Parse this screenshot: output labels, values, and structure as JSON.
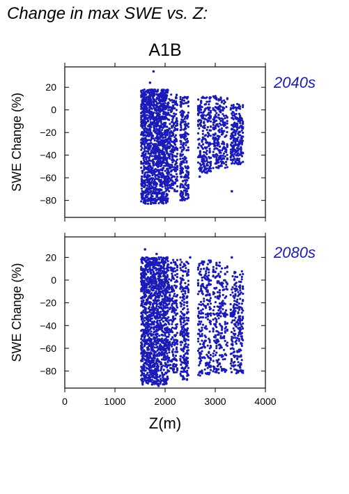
{
  "heading": "Change in max SWE vs. Z:",
  "scenario": "A1B",
  "colors": {
    "points": "#1a1ab8",
    "period_label": "#1a1ab8",
    "axes": "#000000"
  },
  "chart_data": [
    {
      "type": "scatter",
      "title": "2040s",
      "xlabel": "",
      "ylabel": "SWE Change (%)",
      "xlim": [
        0,
        4000
      ],
      "ylim": [
        -95,
        38
      ],
      "yticks": [
        "20",
        "0",
        "−20",
        "−40",
        "−60",
        "−80"
      ],
      "xtick_labels_visible": false,
      "grid": false,
      "elevation_bands": [
        {
          "z_min": 1520,
          "z_max": 2060,
          "y_min": -83,
          "y_max": 18,
          "dense": true
        },
        {
          "z_min": 2060,
          "z_max": 2250,
          "y_min": -72,
          "y_max": 14,
          "dense": false
        },
        {
          "z_min": 2300,
          "z_max": 2470,
          "y_min": -80,
          "y_max": 12,
          "dense": false
        },
        {
          "z_min": 2650,
          "z_max": 2920,
          "y_min": -56,
          "y_max": 12,
          "dense": false
        },
        {
          "z_min": 2950,
          "z_max": 3250,
          "y_min": -52,
          "y_max": 13,
          "dense": false
        },
        {
          "z_min": 3300,
          "z_max": 3560,
          "y_min": -48,
          "y_max": 6,
          "dense": false
        }
      ],
      "outliers": [
        {
          "x": 1770,
          "y": 34
        },
        {
          "x": 1700,
          "y": 24
        },
        {
          "x": 3330,
          "y": -72
        },
        {
          "x": 2690,
          "y": -59
        }
      ]
    },
    {
      "type": "scatter",
      "title": "2080s",
      "xlabel": "Z(m)",
      "ylabel": "SWE Change (%)",
      "xlim": [
        0,
        4000
      ],
      "ylim": [
        -95,
        38
      ],
      "yticks": [
        "20",
        "0",
        "−20",
        "−40",
        "−60",
        "−80"
      ],
      "xticks": [
        "0",
        "1000",
        "2000",
        "3000",
        "4000"
      ],
      "grid": false,
      "elevation_bands": [
        {
          "z_min": 1520,
          "z_max": 2060,
          "y_min": -92,
          "y_max": 20,
          "dense": true
        },
        {
          "z_min": 2060,
          "z_max": 2250,
          "y_min": -82,
          "y_max": 18,
          "dense": false
        },
        {
          "z_min": 2300,
          "z_max": 2470,
          "y_min": -88,
          "y_max": 18,
          "dense": false
        },
        {
          "z_min": 2650,
          "z_max": 2920,
          "y_min": -84,
          "y_max": 20,
          "dense": false
        },
        {
          "z_min": 2950,
          "z_max": 3250,
          "y_min": -82,
          "y_max": 18,
          "dense": false
        },
        {
          "z_min": 3300,
          "z_max": 3560,
          "y_min": -82,
          "y_max": 8,
          "dense": false
        }
      ],
      "outliers": [
        {
          "x": 1600,
          "y": 27
        },
        {
          "x": 1830,
          "y": 23
        },
        {
          "x": 2500,
          "y": 20
        },
        {
          "x": 3330,
          "y": 20
        },
        {
          "x": 1870,
          "y": -93
        }
      ]
    }
  ]
}
